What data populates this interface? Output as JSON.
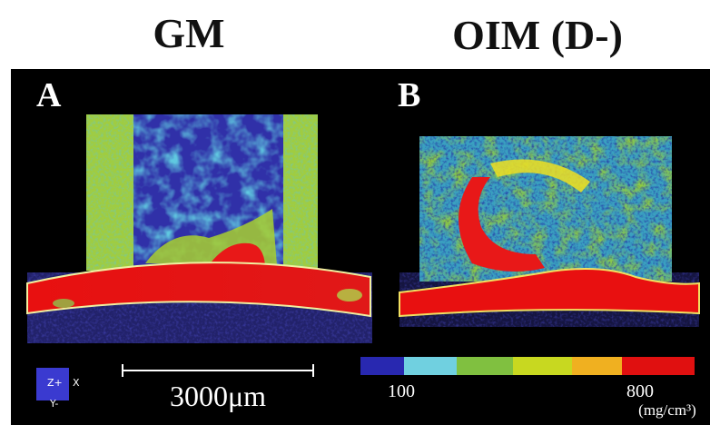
{
  "header": {
    "left_title": "GM",
    "right_title": "OIM (D-)"
  },
  "panels": [
    {
      "label": "A"
    },
    {
      "label": "B"
    }
  ],
  "axis_icon": {
    "z": "Z+",
    "x": "X",
    "y": "Y-"
  },
  "scale_bar": {
    "label": "3000μm"
  },
  "color_bar": {
    "min_label": "100",
    "max_label": "800",
    "unit": "(mg/cm³)"
  }
}
